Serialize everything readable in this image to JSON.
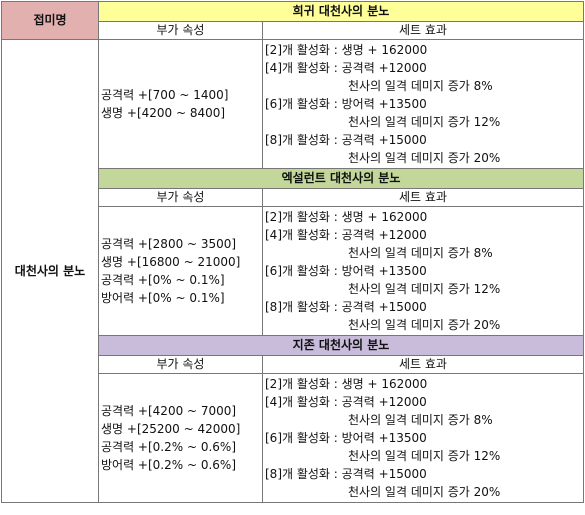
{
  "header": {
    "category_label": "접미명",
    "name": "대천사의 분노"
  },
  "columns": {
    "attr": "부가 속성",
    "effect": "세트 효과"
  },
  "sections": [
    {
      "title": "희귀 대천사의 분노",
      "color": "#ffff9a",
      "attributes": [
        "공격력 +[700 ~ 1400]",
        "생명 +[4200 ~ 8400]"
      ],
      "effects": [
        {
          "text": "[2]개 활성화 : 생명 + 162000",
          "indent": false
        },
        {
          "text": "[4]개 활성화 : 공격력 +12000",
          "indent": false
        },
        {
          "text": "천사의 일격 데미지 증가 8%",
          "indent": true
        },
        {
          "text": "[6]개 활성화 : 방어력 +13500",
          "indent": false
        },
        {
          "text": "천사의 일격 데미지 증가 12%",
          "indent": true
        },
        {
          "text": "[8]개 활성화 : 공격력 +15000",
          "indent": false
        },
        {
          "text": "천사의 일격 데미지 증가 20%",
          "indent": true
        }
      ]
    },
    {
      "title": "엑설런트 대천사의 분노",
      "color": "#c4d79a",
      "attributes": [
        "공격력 +[2800 ~ 3500]",
        "생명 +[16800 ~ 21000]",
        "공격력 +[0% ~ 0.1%]",
        "방어력 +[0% ~ 0.1%]"
      ],
      "effects": [
        {
          "text": "[2]개 활성화 : 생명 + 162000",
          "indent": false
        },
        {
          "text": "[4]개 활성화 : 공격력 +12000",
          "indent": false
        },
        {
          "text": "천사의 일격 데미지 증가 8%",
          "indent": true
        },
        {
          "text": "[6]개 활성화 : 방어력 +13500",
          "indent": false
        },
        {
          "text": "천사의 일격 데미지 증가 12%",
          "indent": true
        },
        {
          "text": "[8]개 활성화 : 공격력 +15000",
          "indent": false
        },
        {
          "text": "천사의 일격 데미지 증가 20%",
          "indent": true
        }
      ]
    },
    {
      "title": "지존 대천사의 분노",
      "color": "#c8bcda",
      "attributes": [
        "공격력 +[4200 ~ 7000]",
        "생명 +[25200 ~ 42000]",
        "공격력 +[0.2% ~ 0.6%]",
        "방어력 +[0.2% ~ 0.6%]"
      ],
      "effects": [
        {
          "text": "[2]개 활성화 : 생명 + 162000",
          "indent": false
        },
        {
          "text": "[4]개 활성화 : 공격력 +12000",
          "indent": false
        },
        {
          "text": "천사의 일격 데미지 증가 8%",
          "indent": true
        },
        {
          "text": "[6]개 활성화 : 방어력 +13500",
          "indent": false
        },
        {
          "text": "천사의 일격 데미지 증가 12%",
          "indent": true
        },
        {
          "text": "[8]개 활성화 : 공격력 +15000",
          "indent": false
        },
        {
          "text": "천사의 일격 데미지 증가 20%",
          "indent": true
        }
      ]
    }
  ]
}
